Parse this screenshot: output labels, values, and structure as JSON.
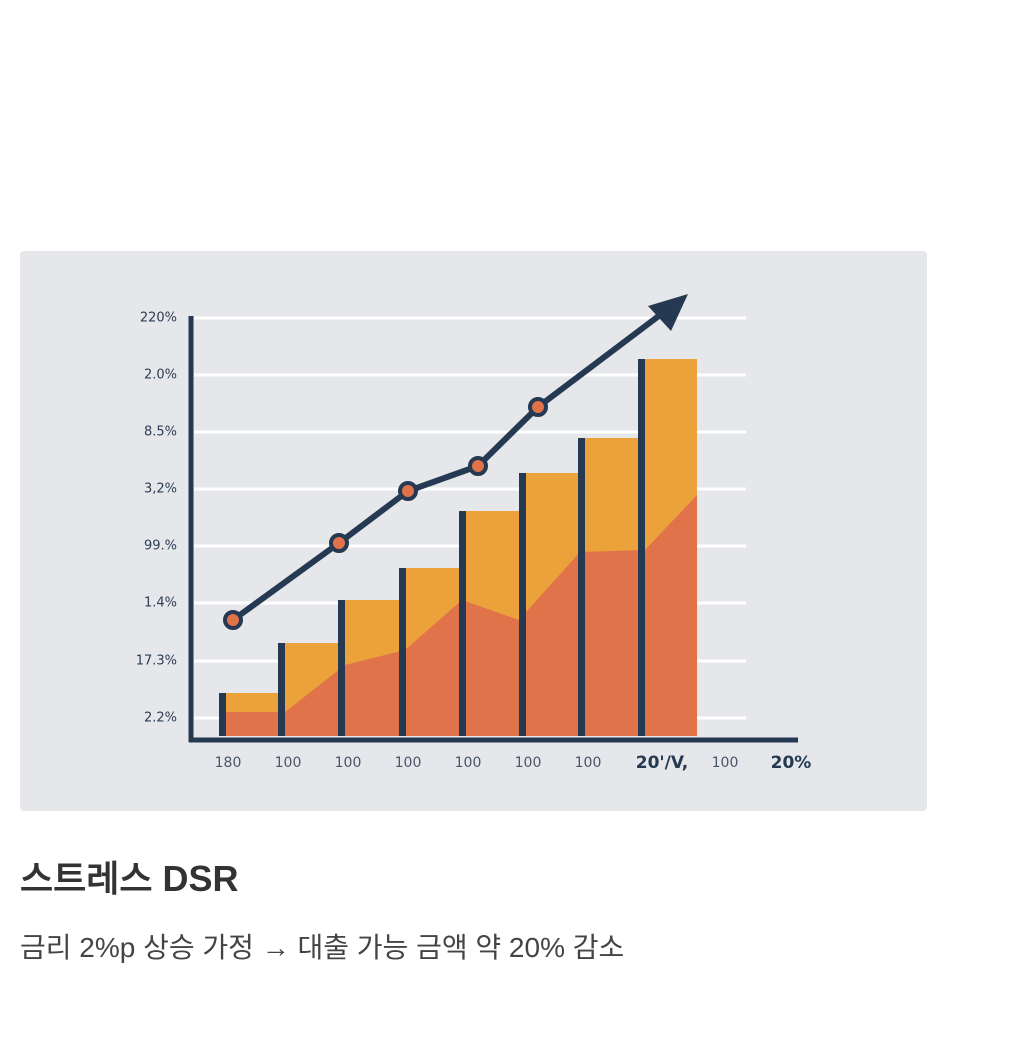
{
  "image": {
    "y_labels": [
      "220%",
      "2.0%",
      "8.5%",
      "3,2%",
      "99.%",
      "1.4%",
      "17.3%",
      "2.2%"
    ],
    "x_labels": [
      "180",
      "100",
      "100",
      "100",
      "100",
      "100",
      "100",
      "20'/V,",
      "100",
      "20%"
    ]
  },
  "card": {
    "title": "스트레스 DSR",
    "text": "금리 2%p 상승 가정 → 대출 가능 금액 약 20% 감소"
  }
}
